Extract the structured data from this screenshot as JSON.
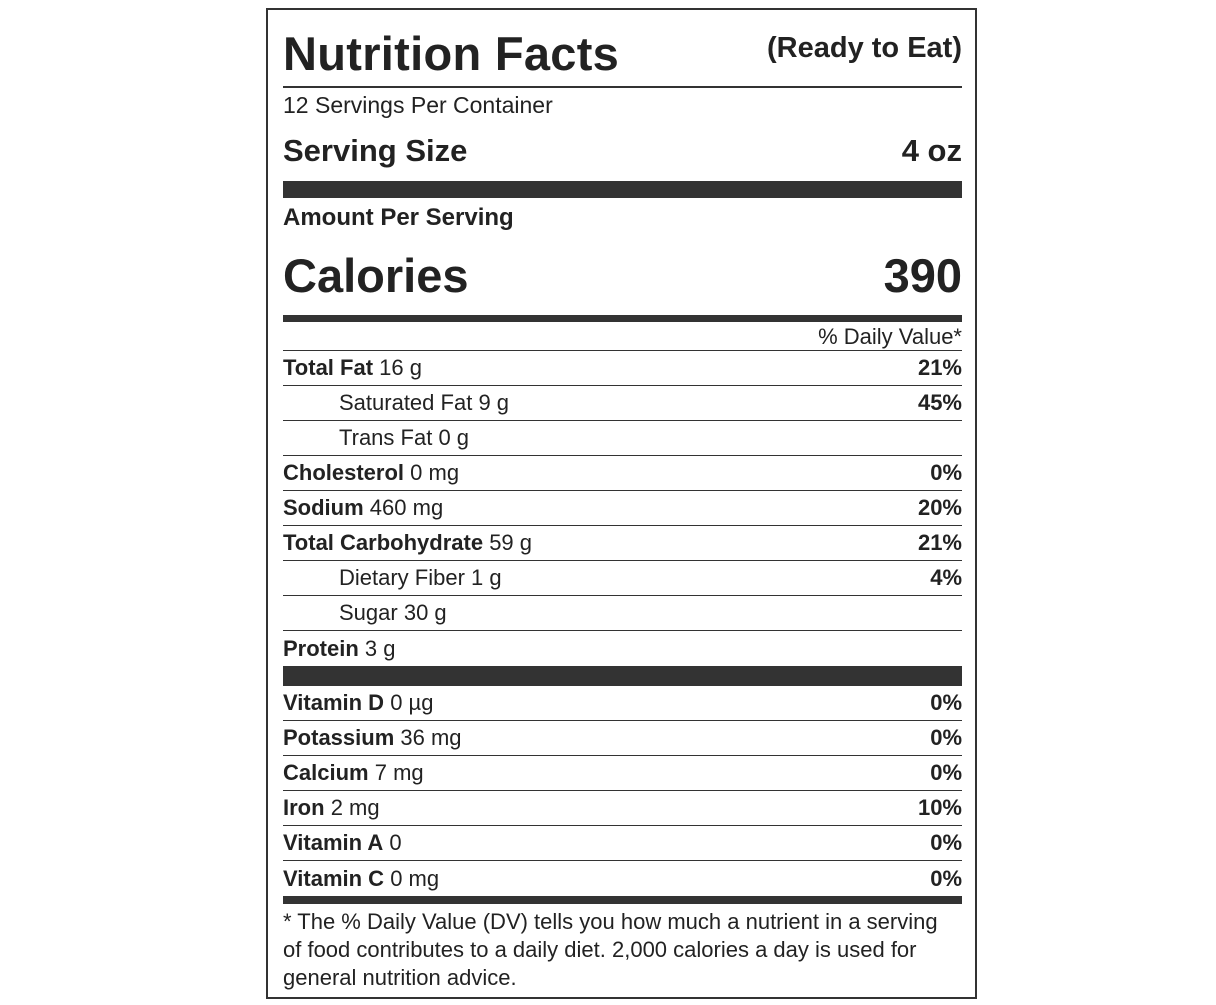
{
  "title": "Nutrition Facts",
  "subtitle": "(Ready to Eat)",
  "servings_per_container": "12 Servings Per Container",
  "serving_size": {
    "label": "Serving Size",
    "value": "4 oz"
  },
  "amount_per_serving": "Amount Per Serving",
  "calories": {
    "label": "Calories",
    "value": "390"
  },
  "daily_value_header": "% Daily Value*",
  "nutrients": [
    {
      "name": "Total Fat",
      "amount": "16 g",
      "dv": "21%",
      "indent": false
    },
    {
      "name": "Saturated Fat",
      "amount": "9 g",
      "dv": "45%",
      "indent": true
    },
    {
      "name": "Trans Fat",
      "amount": "0 g",
      "dv": "",
      "indent": true
    },
    {
      "name": "Cholesterol",
      "amount": "0 mg",
      "dv": "0%",
      "indent": false
    },
    {
      "name": "Sodium",
      "amount": "460 mg",
      "dv": "20%",
      "indent": false
    },
    {
      "name": "Total Carbohydrate",
      "amount": "59 g",
      "dv": "21%",
      "indent": false
    },
    {
      "name": "Dietary Fiber",
      "amount": "1 g",
      "dv": "4%",
      "indent": true
    },
    {
      "name": "Sugar",
      "amount": "30 g",
      "dv": "",
      "indent": true
    },
    {
      "name": "Protein",
      "amount": "3 g",
      "dv": "",
      "indent": false
    }
  ],
  "vitamins": [
    {
      "name": "Vitamin D",
      "amount": "0 µg",
      "dv": "0%"
    },
    {
      "name": "Potassium",
      "amount": "36 mg",
      "dv": "0%"
    },
    {
      "name": "Calcium",
      "amount": "7 mg",
      "dv": "0%"
    },
    {
      "name": "Iron",
      "amount": "2 mg",
      "dv": "10%"
    },
    {
      "name": "Vitamin A",
      "amount": "0",
      "dv": "0%"
    },
    {
      "name": "Vitamin C",
      "amount": "0 mg",
      "dv": "0%"
    }
  ],
  "footnote": "* The % Daily Value (DV) tells you how much a nutrient in a serving of food contributes to a daily diet. 2,000 calories a day is used for general nutrition advice."
}
